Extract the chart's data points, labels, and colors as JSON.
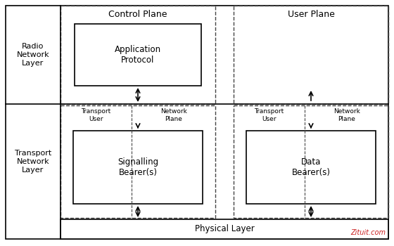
{
  "bg_color": "#ffffff",
  "text_color": "#000000",
  "watermark": "Zituit.com",
  "watermark_color": "#cc2222",
  "radio_layer_label": "Radio\nNetwork\nLayer",
  "transport_layer_label": "Transport\nNetwork\nLayer",
  "control_plane_label": "Control Plane",
  "user_plane_label": "User Plane",
  "app_protocol_label": "Application\nProtocol",
  "signalling_bearer_label": "Signalling\nBearer(s)",
  "data_bearer_label": "Data\nBearer(s)",
  "transport_user_label": "Transport\nUser",
  "network_plane_label": "Network\nPlane",
  "physical_layer_label": "Physical Layer"
}
